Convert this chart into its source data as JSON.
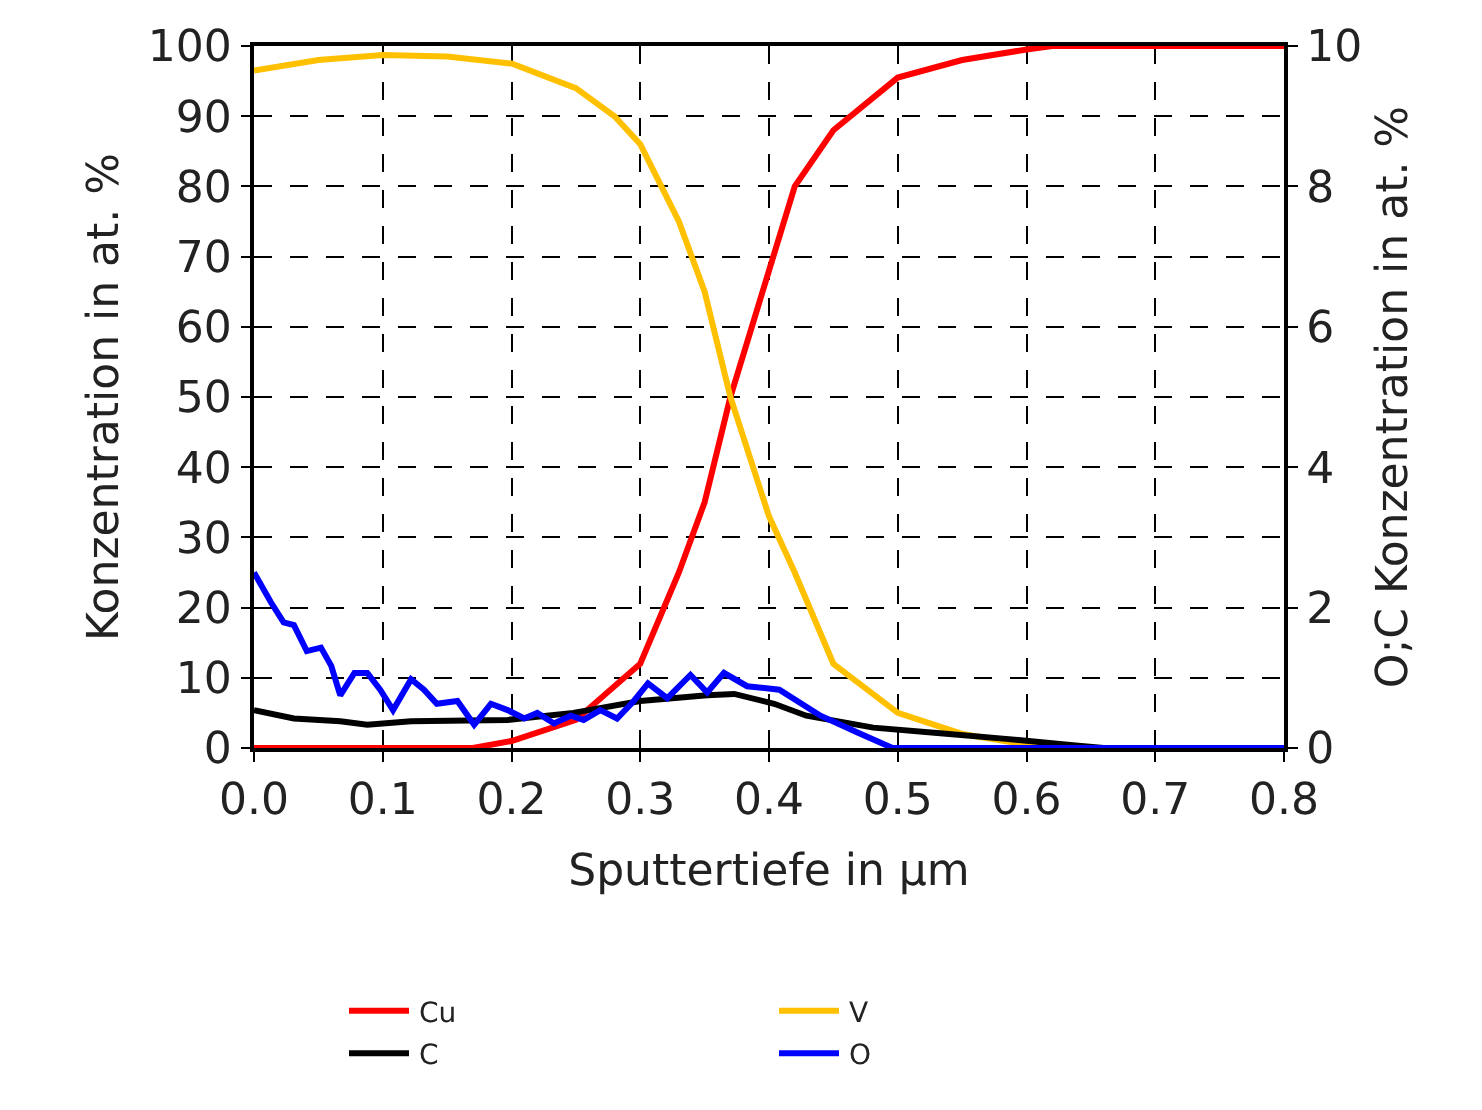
{
  "chart_data": {
    "type": "line",
    "xlabel": "Sputtertiefe in µm",
    "ylabel": "Konzentration in at. %",
    "y2label": "O;C Konzentration in at. %",
    "xlim": [
      0,
      0.8
    ],
    "xticks": [
      {
        "value": 0,
        "label": "0.0"
      },
      0.1,
      0.2,
      0.3,
      0.4,
      0.5,
      0.6,
      0.7,
      0.8
    ],
    "ylim": [
      0,
      100
    ],
    "yticks": [
      0,
      10,
      20,
      30,
      40,
      50,
      60,
      70,
      80,
      90,
      100
    ],
    "y2lim": [
      0,
      10
    ],
    "y2ticks": [
      0,
      2,
      4,
      6,
      8,
      10
    ],
    "grid": true,
    "legend": "bottom",
    "marker": "none",
    "line_style": "solid",
    "series": [
      {
        "name": "Cu",
        "color": "#ff0000",
        "x": [
          0,
          0.17,
          0.2,
          0.25,
          0.3,
          0.33,
          0.35,
          0.37,
          0.4,
          0.42,
          0.45,
          0.5,
          0.55,
          0.6,
          0.62,
          0.8
        ],
        "values": [
          0,
          0,
          1,
          4,
          12,
          25,
          35,
          50,
          68,
          80,
          88,
          95.5,
          98,
          99.5,
          100,
          100
        ]
      },
      {
        "name": "V",
        "color": "#ffc000",
        "x": [
          0,
          0.05,
          0.1,
          0.15,
          0.2,
          0.25,
          0.28,
          0.3,
          0.33,
          0.35,
          0.37,
          0.4,
          0.42,
          0.45,
          0.5,
          0.55,
          0.6,
          0.65,
          0.8
        ],
        "values": [
          96.5,
          98,
          98.7,
          98.5,
          97.5,
          94,
          90,
          86,
          75,
          65,
          50,
          33,
          25,
          12,
          5,
          2,
          0.5,
          0,
          0
        ]
      },
      {
        "name": "C",
        "color": "#000000",
        "axis": "y2",
        "x": [
          0,
          0.031,
          0.067,
          0.088,
          0.122,
          0.197,
          0.248,
          0.3,
          0.352,
          0.373,
          0.404,
          0.429,
          0.481,
          0.533,
          0.584,
          0.636,
          0.66,
          0.8
        ],
        "values": [
          0.54,
          0.42,
          0.38,
          0.33,
          0.38,
          0.4,
          0.5,
          0.67,
          0.75,
          0.77,
          0.63,
          0.46,
          0.29,
          0.21,
          0.13,
          0.04,
          0,
          0
        ]
      },
      {
        "name": "O",
        "color": "#0000ff",
        "axis": "y2",
        "x": [
          0,
          0.013,
          0.023,
          0.031,
          0.041,
          0.052,
          0.06,
          0.067,
          0.078,
          0.088,
          0.098,
          0.108,
          0.122,
          0.132,
          0.142,
          0.158,
          0.171,
          0.184,
          0.197,
          0.21,
          0.22,
          0.233,
          0.246,
          0.256,
          0.269,
          0.282,
          0.295,
          0.306,
          0.321,
          0.339,
          0.352,
          0.365,
          0.383,
          0.408,
          0.44,
          0.47,
          0.496,
          0.8
        ],
        "values": [
          2.5,
          2.08,
          1.79,
          1.75,
          1.38,
          1.43,
          1.17,
          0.75,
          1.07,
          1.07,
          0.83,
          0.54,
          0.98,
          0.83,
          0.63,
          0.67,
          0.33,
          0.63,
          0.54,
          0.42,
          0.5,
          0.35,
          0.46,
          0.4,
          0.54,
          0.42,
          0.67,
          0.92,
          0.71,
          1.04,
          0.79,
          1.07,
          0.88,
          0.83,
          0.46,
          0.21,
          0,
          0
        ]
      }
    ]
  }
}
